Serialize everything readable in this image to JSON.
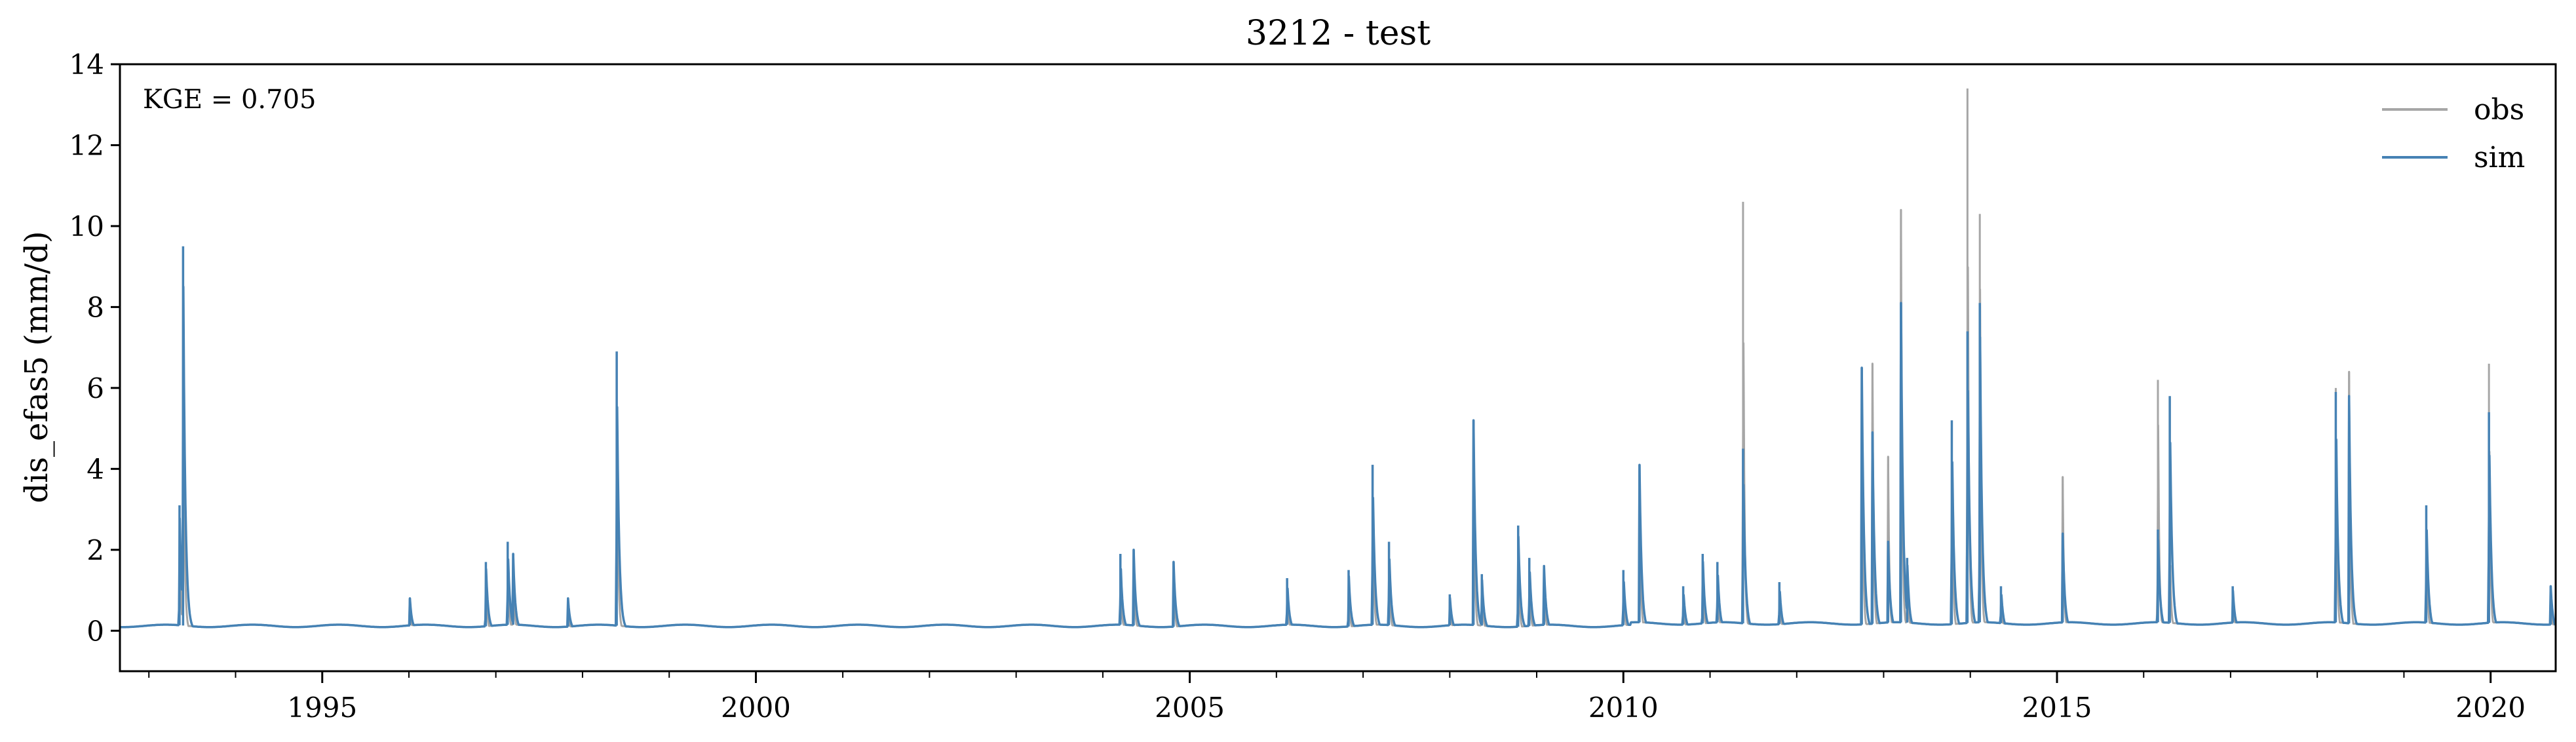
{
  "chart_data": {
    "type": "line",
    "title": "3212 - test",
    "xlabel": "",
    "ylabel": "dis_efas5 (mm/d)",
    "x_range": [
      "1992-09-01",
      "2020-10-01"
    ],
    "ylim": [
      -1,
      14
    ],
    "x_ticks": [
      "1995",
      "2000",
      "2005",
      "2010",
      "2015",
      "2020"
    ],
    "y_ticks": [
      "0",
      "2",
      "4",
      "6",
      "8",
      "10",
      "12",
      "14"
    ],
    "annotation": "KGE = 0.705",
    "grid": false,
    "legend_position": "top-right",
    "colors": {
      "obs": "#a6a6a6",
      "sim": "#4682b4"
    },
    "series": [
      {
        "name": "obs",
        "x": [
          "1993-05-10",
          "1993-05-25",
          "1996-01-05",
          "1996-11-20",
          "1997-02-20",
          "1997-03-15",
          "1997-11-01",
          "1998-05-25",
          "2004-03-15",
          "2004-05-10",
          "2004-10-25",
          "2006-02-15",
          "2006-11-01",
          "2007-02-10",
          "2007-04-20",
          "2008-01-01",
          "2008-04-10",
          "2008-05-15",
          "2008-10-15",
          "2008-12-01",
          "2009-02-01",
          "2010-01-01",
          "2010-03-10",
          "2010-09-10",
          "2010-12-01",
          "2011-02-01",
          "2011-05-20",
          "2011-10-20",
          "2012-10-01",
          "2012-11-15",
          "2013-01-20",
          "2013-03-15",
          "2013-04-10",
          "2013-10-15",
          "2013-12-20",
          "2014-02-10",
          "2014-05-10",
          "2015-01-25",
          "2016-03-01",
          "2016-04-20",
          "2017-01-10",
          "2018-03-20",
          "2018-05-15",
          "2019-04-05",
          "2019-12-25",
          "2020-09-10"
        ],
        "y": [
          3.0,
          9.3,
          0.8,
          1.6,
          2.0,
          1.8,
          0.7,
          6.9,
          1.8,
          1.9,
          1.7,
          1.2,
          1.4,
          4.1,
          2.1,
          0.8,
          5.2,
          1.3,
          2.5,
          1.7,
          1.5,
          1.4,
          4.0,
          1.0,
          1.8,
          1.6,
          10.6,
          1.2,
          6.5,
          6.6,
          4.3,
          10.4,
          1.7,
          5.0,
          13.4,
          10.3,
          1.0,
          3.8,
          6.2,
          2.4,
          1.0,
          6.0,
          6.4,
          3.0,
          6.6,
          1.0
        ]
      },
      {
        "name": "sim",
        "x": [
          "1993-05-10",
          "1993-05-25",
          "1996-01-05",
          "1996-11-20",
          "1997-02-20",
          "1997-03-15",
          "1997-11-01",
          "1998-05-25",
          "2004-03-15",
          "2004-05-10",
          "2004-10-25",
          "2006-02-15",
          "2006-11-01",
          "2007-02-10",
          "2007-04-20",
          "2008-01-01",
          "2008-04-10",
          "2008-05-15",
          "2008-10-15",
          "2008-12-01",
          "2009-02-01",
          "2010-01-01",
          "2010-03-10",
          "2010-09-10",
          "2010-12-01",
          "2011-02-01",
          "2011-05-20",
          "2011-10-20",
          "2012-10-01",
          "2012-11-15",
          "2013-01-20",
          "2013-03-15",
          "2013-04-10",
          "2013-10-15",
          "2013-12-20",
          "2014-02-10",
          "2014-05-10",
          "2015-01-25",
          "2016-03-01",
          "2016-04-20",
          "2017-01-10",
          "2018-03-20",
          "2018-05-15",
          "2019-04-05",
          "2019-12-25",
          "2020-09-10"
        ],
        "y": [
          3.1,
          9.5,
          0.8,
          1.7,
          2.2,
          1.9,
          0.8,
          6.9,
          1.9,
          2.0,
          1.7,
          1.3,
          1.5,
          4.1,
          2.2,
          0.9,
          5.2,
          1.4,
          2.6,
          1.8,
          1.6,
          1.5,
          4.1,
          1.1,
          1.9,
          1.7,
          4.5,
          1.2,
          6.5,
          4.9,
          2.2,
          8.1,
          1.8,
          5.2,
          7.4,
          8.1,
          1.1,
          2.4,
          2.5,
          5.8,
          1.1,
          5.9,
          5.8,
          3.1,
          5.4,
          1.1
        ]
      }
    ]
  }
}
